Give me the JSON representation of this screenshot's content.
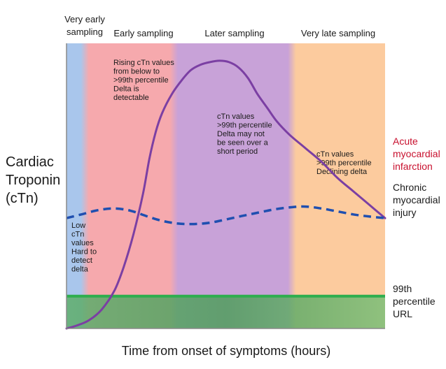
{
  "chart_data": {
    "type": "line",
    "title": "",
    "xlabel": "Time from onset of symptoms (hours)",
    "ylabel": "Cardiac Troponin (cTn)",
    "ylabel_lines": [
      "Cardiac",
      "Troponin",
      "(cTn)"
    ],
    "xlim": [
      0,
      100
    ],
    "ylim": [
      0,
      100
    ],
    "phases": [
      {
        "name": "Very early sampling",
        "lines": [
          "Very early",
          "sampling"
        ],
        "start": 0,
        "end": 6,
        "color": "#a9c6ec"
      },
      {
        "name": "Early sampling",
        "lines": [
          "Early sampling"
        ],
        "start": 6,
        "end": 34,
        "color": "#f6a9ad"
      },
      {
        "name": "Later sampling",
        "lines": [
          "Later sampling"
        ],
        "start": 34,
        "end": 71,
        "color": "#c8a2d8"
      },
      {
        "name": "Very late sampling",
        "lines": [
          "Very late sampling"
        ],
        "start": 71,
        "end": 100,
        "color": "#fccb9e"
      }
    ],
    "annotations": [
      {
        "lines": [
          "Low",
          "cTn",
          "values",
          "Hard to",
          "detect",
          "delta"
        ]
      },
      {
        "lines": [
          "Rising cTn values",
          "from below to",
          ">99th percentile",
          "Delta is",
          "detectable"
        ]
      },
      {
        "lines": [
          "cTn values",
          ">99th percentile",
          "Delta may not",
          "be seen over a",
          "short period"
        ]
      },
      {
        "lines": [
          "cTn values",
          ">99th percentile",
          "Declining delta"
        ]
      }
    ],
    "threshold": {
      "name": "99th percentile URL",
      "lines": [
        "99th",
        "percentile",
        "URL"
      ],
      "value": 12,
      "color": "#2eae4e"
    },
    "series": [
      {
        "name": "Acute myocardial infarction",
        "lines": [
          "Acute",
          "myocardial",
          "infarction"
        ],
        "style": "solid",
        "color": "#7b3fa3",
        "label_color": "#c8102e",
        "x": [
          0,
          3,
          7,
          11,
          15,
          18,
          21,
          24,
          26,
          28,
          30,
          33,
          36,
          39,
          42,
          45,
          48,
          51,
          54,
          57,
          60,
          63,
          66,
          70,
          75,
          80,
          85,
          90,
          95,
          100
        ],
        "y": [
          0,
          1,
          3,
          7,
          14,
          23,
          35,
          50,
          63,
          73,
          80,
          87,
          92,
          96,
          98,
          99,
          99.5,
          99,
          97,
          93,
          87,
          82,
          77,
          72,
          67,
          62,
          56,
          51,
          46,
          41
        ]
      },
      {
        "name": "Chronic myocardial injury",
        "lines": [
          "Chronic",
          "myocardial",
          "injury"
        ],
        "style": "dashed",
        "color": "#1f4fb0",
        "label_color": "#1a1a1a",
        "x": [
          0,
          5,
          10,
          15,
          20,
          25,
          30,
          35,
          40,
          45,
          50,
          55,
          60,
          65,
          70,
          75,
          80,
          85,
          90,
          95,
          100
        ],
        "y": [
          41,
          42.5,
          44,
          44.6,
          43.8,
          41.8,
          40,
          39,
          38.8,
          39.3,
          40.5,
          41.8,
          43,
          44.2,
          45,
          45.3,
          44.6,
          43.5,
          42.4,
          41.6,
          41
        ]
      }
    ]
  }
}
